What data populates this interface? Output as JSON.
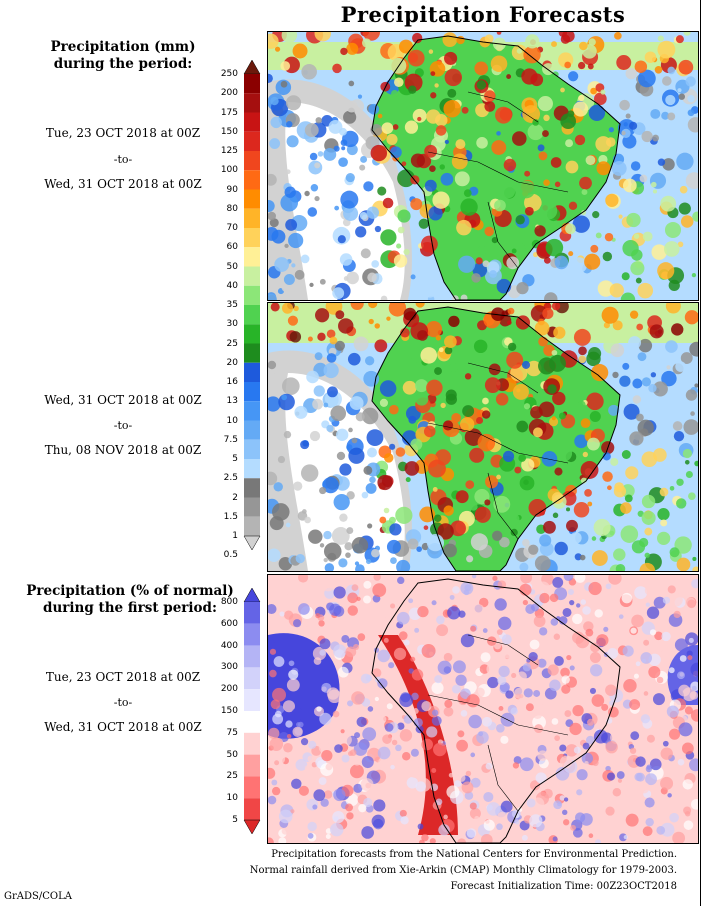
{
  "title": "Precipitation Forecasts",
  "amount_label": {
    "line1": "Precipitation (mm)",
    "line2": "during the period:"
  },
  "period1": {
    "from": "Tue, 23 OCT 2018 at 00Z",
    "sep": "-to-",
    "to": "Wed, 31 OCT 2018 at 00Z"
  },
  "period2": {
    "from": "Wed, 31 OCT 2018 at 00Z",
    "sep": "-to-",
    "to": "Thu, 08 NOV 2018 at 00Z"
  },
  "pct_label": {
    "line1": "Precipitation (% of normal)",
    "line2": "during the first period:"
  },
  "period3": {
    "from": "Tue, 23 OCT 2018 at 00Z",
    "sep": "-to-",
    "to": "Wed, 31 OCT 2018 at 00Z"
  },
  "mm_scale": {
    "levels": [
      "250",
      "200",
      "175",
      "150",
      "125",
      "100",
      "90",
      "80",
      "70",
      "60",
      "50",
      "40",
      "35",
      "30",
      "25",
      "20",
      "16",
      "13",
      "10",
      "7.5",
      "5",
      "2.5",
      "2",
      "1.5",
      "1",
      "0.5"
    ],
    "colors": [
      "#6b1a0c",
      "#8b0000",
      "#a50f0f",
      "#c81414",
      "#dc281e",
      "#f0461e",
      "#ff6a14",
      "#ff8c00",
      "#ffb428",
      "#ffd25a",
      "#fff096",
      "#c8f0a0",
      "#8ce678",
      "#50d250",
      "#28b428",
      "#1e8c1e",
      "#1e5adc",
      "#2878f0",
      "#4696f5",
      "#64aaf5",
      "#8cc3fa",
      "#b4dcff",
      "#787878",
      "#969696",
      "#b4b4b4",
      "#d2d2d2"
    ]
  },
  "pct_scale": {
    "levels": [
      "800",
      "600",
      "400",
      "300",
      "200",
      "150",
      "75",
      "50",
      "25",
      "10",
      "5"
    ],
    "colors": [
      "#4646dc",
      "#6464e6",
      "#8c8cf0",
      "#b4b4f5",
      "#d2d2fa",
      "#e6e6ff",
      "#ffffff",
      "#ffd2d2",
      "#ffa0a0",
      "#ff7373",
      "#f04646",
      "#dc2828"
    ]
  },
  "footer": {
    "line1": "Precipitation forecasts from the National Centers for Environmental Prediction.",
    "line2": "Normal rainfall derived from Xie-Arkin (CMAP) Monthly Climatology for 1979-2003.",
    "line3": "Forecast Initialization Time: 00Z23OCT2018"
  },
  "credit": "GrADS/COLA"
}
